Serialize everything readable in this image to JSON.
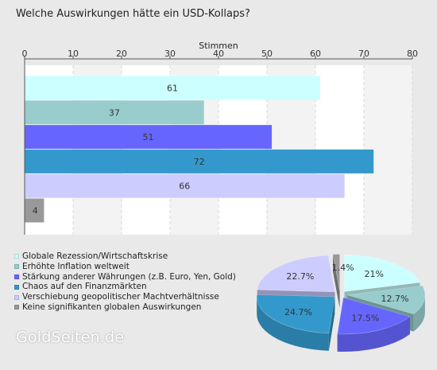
{
  "title": "Welche Auswirkungen hätte ein USD-Kollaps?",
  "brand": "GoldSeiten.de",
  "chart_data": [
    {
      "type": "bar",
      "orientation": "horizontal",
      "xlabel": "Stimmen",
      "xlim": [
        0,
        80
      ],
      "xticks": [
        "0",
        "10",
        "20",
        "30",
        "40",
        "50",
        "60",
        "70",
        "80"
      ],
      "grid": true,
      "categories": [
        "Globale Rezession/Wirtschaftskrise",
        "Erhöhte Inflation weltweit",
        "Stärkung anderer Währungen (z.B. Euro, Yen, Gold)",
        "Chaos auf den Finanzmärkten",
        "Verschiebung geopolitischer Machtverhältnisse",
        "Keine signifikanten globalen Auswirkungen"
      ],
      "values": [
        61,
        37,
        51,
        72,
        66,
        4
      ],
      "value_labels": [
        "61",
        "37",
        "51",
        "72",
        "66",
        "4"
      ],
      "colors": [
        "#ccffff",
        "#99cccc",
        "#6666ff",
        "#3399cc",
        "#ccccff",
        "#999999"
      ],
      "legend_position": "bottom-left"
    },
    {
      "type": "pie",
      "style": "3d-exploded",
      "categories": [
        "Globale Rezession/Wirtschaftskrise",
        "Erhöhte Inflation weltweit",
        "Stärkung anderer Währungen (z.B. Euro, Yen, Gold)",
        "Chaos auf den Finanzmärkten",
        "Verschiebung geopolitischer Machtverhältnisse",
        "Keine signifikanten globalen Auswirkungen"
      ],
      "values": [
        21,
        12.7,
        17.5,
        24.7,
        22.7,
        1.4
      ],
      "value_labels": [
        "21%",
        "12.7%",
        "17.5%",
        "24.7%",
        "22.7%",
        "1.4%"
      ],
      "colors": [
        "#ccffff",
        "#99cccc",
        "#6666ff",
        "#3399cc",
        "#ccccff",
        "#999999"
      ]
    }
  ]
}
